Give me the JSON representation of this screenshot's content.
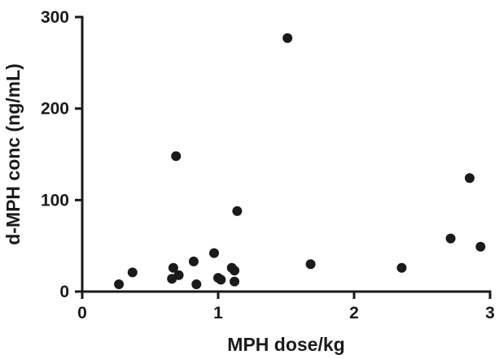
{
  "chart_data": {
    "type": "scatter",
    "title": "",
    "xlabel": "MPH dose/kg",
    "ylabel": "d-MPH conc (ng/mL)",
    "xlim": [
      0,
      3
    ],
    "ylim": [
      0,
      300
    ],
    "x_ticks": [
      0,
      1,
      2,
      3
    ],
    "y_ticks": [
      0,
      100,
      200,
      300
    ],
    "x_tick_labels": [
      "0",
      "1",
      "2",
      "3"
    ],
    "y_tick_labels": [
      "0",
      "100",
      "200",
      "300"
    ],
    "grid": false,
    "legend": "none",
    "marker_color": "#1a1a1a",
    "points": [
      {
        "x": 0.27,
        "y": 8
      },
      {
        "x": 0.37,
        "y": 21
      },
      {
        "x": 0.66,
        "y": 14
      },
      {
        "x": 0.67,
        "y": 26
      },
      {
        "x": 0.69,
        "y": 148
      },
      {
        "x": 0.71,
        "y": 18
      },
      {
        "x": 0.82,
        "y": 33
      },
      {
        "x": 0.84,
        "y": 8
      },
      {
        "x": 0.97,
        "y": 42
      },
      {
        "x": 1.0,
        "y": 15
      },
      {
        "x": 1.02,
        "y": 13
      },
      {
        "x": 1.1,
        "y": 26
      },
      {
        "x": 1.12,
        "y": 23
      },
      {
        "x": 1.12,
        "y": 11
      },
      {
        "x": 1.14,
        "y": 88
      },
      {
        "x": 1.51,
        "y": 277
      },
      {
        "x": 1.68,
        "y": 30
      },
      {
        "x": 2.35,
        "y": 26
      },
      {
        "x": 2.71,
        "y": 58
      },
      {
        "x": 2.85,
        "y": 124
      },
      {
        "x": 2.93,
        "y": 49
      }
    ]
  }
}
